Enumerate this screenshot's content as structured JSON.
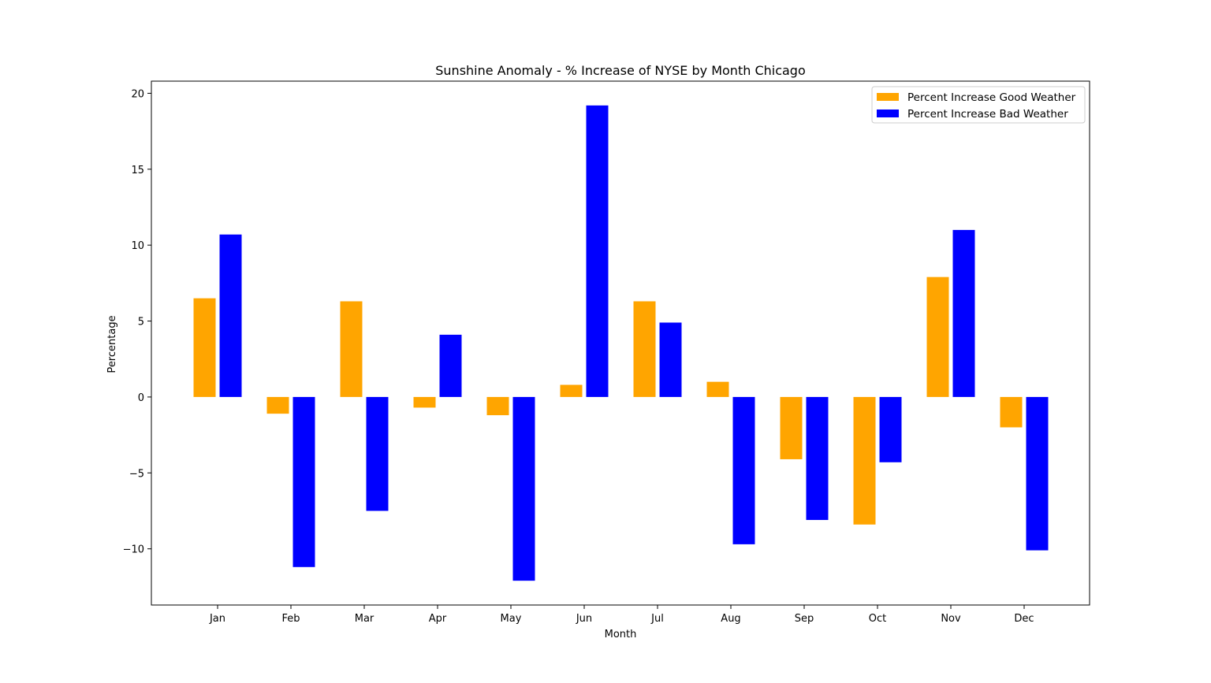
{
  "chart_data": {
    "type": "bar",
    "title": "Sunshine Anomaly - % Increase of NYSE by Month Chicago",
    "xlabel": "Month",
    "ylabel": "Percentage",
    "categories": [
      "Jan",
      "Feb",
      "Mar",
      "Apr",
      "May",
      "Jun",
      "Jul",
      "Aug",
      "Sep",
      "Oct",
      "Nov",
      "Dec"
    ],
    "series": [
      {
        "name": "Percent Increase Good Weather",
        "color": "#ffa500",
        "values": [
          6.5,
          -1.1,
          6.3,
          -0.7,
          -1.2,
          0.8,
          6.3,
          1.0,
          -4.1,
          -8.4,
          7.9,
          -2.0
        ]
      },
      {
        "name": "Percent Increase Bad Weather",
        "color": "#0000ff",
        "values": [
          10.7,
          -11.2,
          -7.5,
          4.1,
          -12.1,
          19.2,
          4.9,
          -9.7,
          -8.1,
          -4.3,
          11.0,
          -10.1
        ]
      }
    ],
    "ylim": [
      -13.7,
      20.8
    ],
    "yticks": [
      -10,
      -5,
      0,
      5,
      10,
      15,
      20
    ],
    "ytick_labels": [
      "−10",
      "−5",
      "0",
      "5",
      "10",
      "15",
      "20"
    ],
    "grid": false,
    "legend_position": "top-right"
  }
}
